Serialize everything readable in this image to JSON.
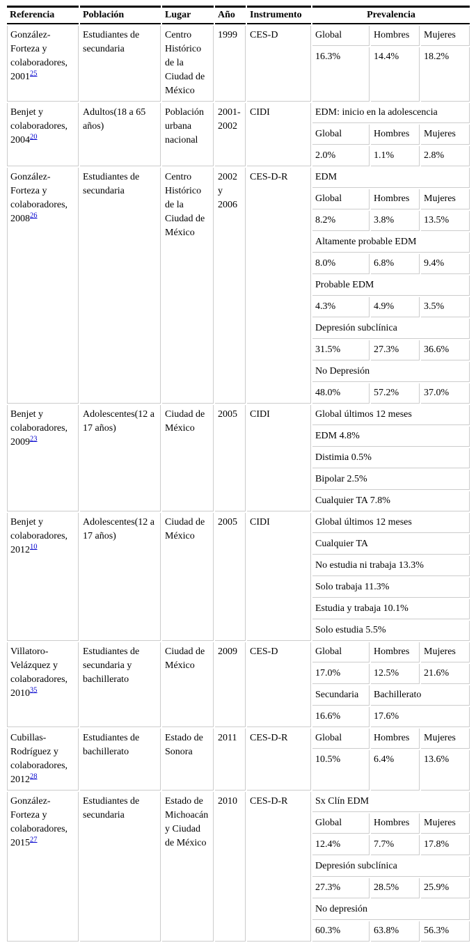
{
  "colors": {
    "cell_border": "#cccccc",
    "header_rule": "#000000",
    "link": "#0000cc",
    "text": "#000000",
    "background": "#ffffff"
  },
  "table": {
    "headers": [
      "Referencia",
      "Población",
      "Lugar",
      "Año",
      "Instrumento",
      "Prevalencia"
    ],
    "rows": [
      {
        "referencia": "González-Forteza y colaboradores, 2001",
        "cita": "25",
        "poblacion": "Estudiantes de secundaria",
        "lugar": "Centro Histórico de la Ciudad de México",
        "anio": "1999",
        "instrumento": "CES-D",
        "prevalencia": [
          {
            "cells": [
              {
                "text": "Global"
              },
              {
                "text": "Hombres"
              },
              {
                "text": "Mujeres"
              }
            ]
          },
          {
            "cells": [
              {
                "text": "16.3%"
              },
              {
                "text": "14.4%"
              },
              {
                "text": "18.2%"
              }
            ]
          }
        ]
      },
      {
        "referencia": "Benjet y colaboradores, 2004",
        "cita": "20",
        "poblacion": "Adultos(18 a 65 años)",
        "lugar": "Población urbana nacional",
        "anio": "2001-2002",
        "instrumento": "CIDI",
        "prevalencia": [
          {
            "cells": [
              {
                "text": "EDM: inicio en la adolescencia",
                "span": 3
              }
            ]
          },
          {
            "cells": [
              {
                "text": "Global"
              },
              {
                "text": "Hombres"
              },
              {
                "text": "Mujeres"
              }
            ]
          },
          {
            "cells": [
              {
                "text": "2.0%"
              },
              {
                "text": "1.1%"
              },
              {
                "text": "2.8%"
              }
            ]
          }
        ]
      },
      {
        "referencia": "González-Forteza y colaboradores, 2008",
        "cita": "26",
        "poblacion": "Estudiantes de secundaria",
        "lugar": "Centro Histórico de la Ciudad de México",
        "anio": "2002 y 2006",
        "instrumento": "CES-D-R",
        "prevalencia": [
          {
            "cells": [
              {
                "text": "EDM",
                "span": 3
              }
            ]
          },
          {
            "cells": [
              {
                "text": "Global"
              },
              {
                "text": "Hombres"
              },
              {
                "text": "Mujeres"
              }
            ]
          },
          {
            "cells": [
              {
                "text": "8.2%"
              },
              {
                "text": "3.8%"
              },
              {
                "text": "13.5%"
              }
            ]
          },
          {
            "cells": [
              {
                "text": "Altamente probable EDM",
                "span": 3
              }
            ]
          },
          {
            "cells": [
              {
                "text": "8.0%"
              },
              {
                "text": "6.8%"
              },
              {
                "text": "9.4%"
              }
            ]
          },
          {
            "cells": [
              {
                "text": "Probable EDM",
                "span": 3
              }
            ]
          },
          {
            "cells": [
              {
                "text": "4.3%"
              },
              {
                "text": "4.9%"
              },
              {
                "text": "3.5%"
              }
            ]
          },
          {
            "cells": [
              {
                "text": "Depresión subclínica",
                "span": 3
              }
            ]
          },
          {
            "cells": [
              {
                "text": "31.5%"
              },
              {
                "text": "27.3%"
              },
              {
                "text": "36.6%"
              }
            ]
          },
          {
            "cells": [
              {
                "text": "No Depresión",
                "span": 3
              }
            ]
          },
          {
            "cells": [
              {
                "text": "48.0%"
              },
              {
                "text": "57.2%"
              },
              {
                "text": "37.0%"
              }
            ]
          }
        ]
      },
      {
        "referencia": "Benjet y colaboradores, 2009",
        "cita": "23",
        "poblacion": "Adolescentes(12 a 17 años)",
        "lugar": "Ciudad de México",
        "anio": "2005",
        "instrumento": "CIDI",
        "prevalencia": [
          {
            "cells": [
              {
                "text": "Global últimos 12 meses",
                "span": 3
              }
            ]
          },
          {
            "cells": [
              {
                "text": "EDM 4.8%",
                "span": 3
              }
            ]
          },
          {
            "cells": [
              {
                "text": "Distimia 0.5%",
                "span": 3
              }
            ]
          },
          {
            "cells": [
              {
                "text": "Bipolar 2.5%",
                "span": 3
              }
            ]
          },
          {
            "cells": [
              {
                "text": "Cualquier TA 7.8%",
                "span": 3
              }
            ]
          }
        ]
      },
      {
        "referencia": "Benjet y colaboradores, 2012",
        "cita": "10",
        "poblacion": "Adolescentes(12 a 17 años)",
        "lugar": "Ciudad de México",
        "anio": "2005",
        "instrumento": "CIDI",
        "prevalencia": [
          {
            "cells": [
              {
                "text": "Global últimos 12 meses",
                "span": 3
              }
            ]
          },
          {
            "cells": [
              {
                "text": "Cualquier TA",
                "span": 3
              }
            ]
          },
          {
            "cells": [
              {
                "text": "No estudia ni trabaja 13.3%",
                "span": 3
              }
            ]
          },
          {
            "cells": [
              {
                "text": "Solo trabaja 11.3%",
                "span": 3
              }
            ]
          },
          {
            "cells": [
              {
                "text": "Estudia y trabaja 10.1%",
                "span": 3
              }
            ]
          },
          {
            "cells": [
              {
                "text": "Solo estudia 5.5%",
                "span": 3
              }
            ]
          }
        ]
      },
      {
        "referencia": "Villatoro-Velázquez y colaboradores, 2010",
        "cita": "35",
        "poblacion": "Estudiantes de secundaria y bachillerato",
        "lugar": "Ciudad de México",
        "anio": "2009",
        "instrumento": "CES-D",
        "prevalencia": [
          {
            "cells": [
              {
                "text": "Global"
              },
              {
                "text": "Hombres"
              },
              {
                "text": "Mujeres"
              }
            ]
          },
          {
            "cells": [
              {
                "text": "17.0%"
              },
              {
                "text": "12.5%"
              },
              {
                "text": "21.6%"
              }
            ]
          },
          {
            "cells": [
              {
                "text": "Secundaria"
              },
              {
                "text": "Bachillerato",
                "span": 2
              }
            ]
          },
          {
            "cells": [
              {
                "text": "16.6%"
              },
              {
                "text": "17.6%",
                "span": 2
              }
            ]
          }
        ]
      },
      {
        "referencia": "Cubillas-Rodríguez y colaboradores, 2012",
        "cita": "28",
        "poblacion": "Estudiantes de bachillerato",
        "lugar": "Estado de Sonora",
        "anio": "2011",
        "instrumento": "CES-D-R",
        "prevalencia": [
          {
            "cells": [
              {
                "text": "Global"
              },
              {
                "text": "Hombres"
              },
              {
                "text": "Mujeres"
              }
            ]
          },
          {
            "cells": [
              {
                "text": "10.5%"
              },
              {
                "text": "6.4%"
              },
              {
                "text": "13.6%"
              }
            ]
          }
        ]
      },
      {
        "referencia": "González-Forteza y colaboradores, 2015",
        "cita": "27",
        "poblacion": "Estudiantes de secundaria",
        "lugar": "Estado de Michoacán y Ciudad de México",
        "anio": "2010",
        "instrumento": "CES-D-R",
        "prevalencia": [
          {
            "cells": [
              {
                "text": "Sx Clín EDM",
                "span": 3
              }
            ]
          },
          {
            "cells": [
              {
                "text": "Global"
              },
              {
                "text": "Hombres"
              },
              {
                "text": "Mujeres"
              }
            ]
          },
          {
            "cells": [
              {
                "text": "12.4%"
              },
              {
                "text": "7.7%"
              },
              {
                "text": "17.8%"
              }
            ]
          },
          {
            "cells": [
              {
                "text": "Depresión subclínica",
                "span": 3
              }
            ]
          },
          {
            "cells": [
              {
                "text": "27.3%"
              },
              {
                "text": "28.5%"
              },
              {
                "text": "25.9%"
              }
            ]
          },
          {
            "cells": [
              {
                "text": "No depresión",
                "span": 3
              }
            ]
          },
          {
            "cells": [
              {
                "text": "60.3%"
              },
              {
                "text": "63.8%"
              },
              {
                "text": "56.3%"
              }
            ]
          }
        ]
      }
    ]
  }
}
